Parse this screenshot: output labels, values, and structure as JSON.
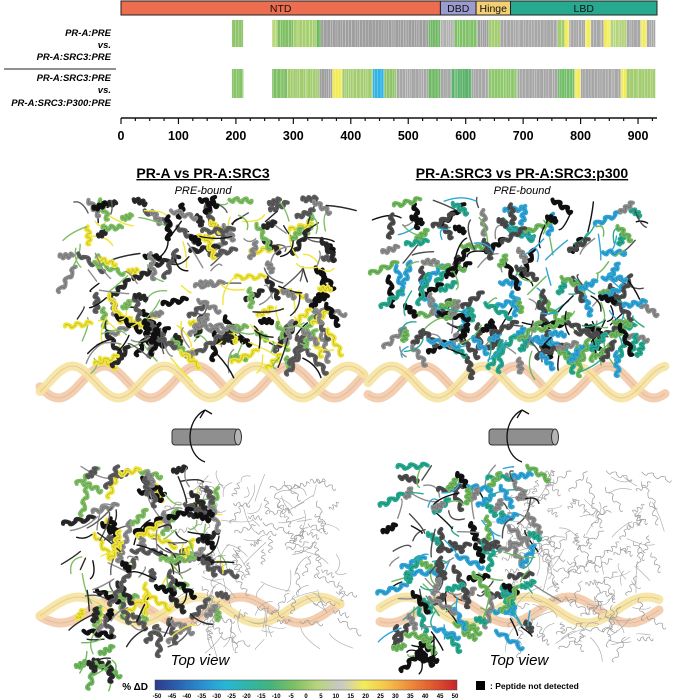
{
  "domains": [
    {
      "label": "NTD",
      "start": 1,
      "end": 556,
      "color": "#ec6d4f"
    },
    {
      "label": "DBD",
      "start": 556,
      "end": 618,
      "color": "#9c9bd0"
    },
    {
      "label": "Hinge",
      "start": 618,
      "end": 678,
      "color": "#f5cf73"
    },
    {
      "label": "LBD",
      "start": 678,
      "end": 933,
      "color": "#27a98f"
    }
  ],
  "axis": {
    "min": 0,
    "max": 933,
    "ticks": [
      0,
      100,
      200,
      300,
      400,
      500,
      600,
      700,
      800,
      900
    ]
  },
  "comparisons": [
    {
      "id": "c1",
      "label_lines": [
        "PR-A:PRE",
        "vs.",
        "PR-A:SRC3:PRE"
      ],
      "segments": [
        {
          "start": 193,
          "end": 213,
          "color": "#8fc46a"
        },
        {
          "start": 263,
          "end": 272,
          "color": "#bcd87a"
        },
        {
          "start": 272,
          "end": 300,
          "color": "#7fbf63"
        },
        {
          "start": 300,
          "end": 340,
          "color": "#a7cf70"
        },
        {
          "start": 340,
          "end": 348,
          "color": "#6cb85d"
        },
        {
          "start": 348,
          "end": 535,
          "color": "#9f9f9f"
        },
        {
          "start": 535,
          "end": 556,
          "color": "#6fb864"
        },
        {
          "start": 556,
          "end": 580,
          "color": "#b0b0b0"
        },
        {
          "start": 580,
          "end": 620,
          "color": "#7fc166"
        },
        {
          "start": 620,
          "end": 640,
          "color": "#9f9f9f"
        },
        {
          "start": 640,
          "end": 660,
          "color": "#a4cd6f"
        },
        {
          "start": 660,
          "end": 760,
          "color": "#a7a7a7"
        },
        {
          "start": 760,
          "end": 772,
          "color": "#a4cd6f"
        },
        {
          "start": 772,
          "end": 780,
          "color": "#f3ec5a"
        },
        {
          "start": 780,
          "end": 808,
          "color": "#a7a7a7"
        },
        {
          "start": 808,
          "end": 818,
          "color": "#f3ec5a"
        },
        {
          "start": 818,
          "end": 840,
          "color": "#a7a7a7"
        },
        {
          "start": 840,
          "end": 852,
          "color": "#f3ec5a"
        },
        {
          "start": 852,
          "end": 880,
          "color": "#b5d57d"
        },
        {
          "start": 880,
          "end": 905,
          "color": "#a7a7a7"
        },
        {
          "start": 905,
          "end": 915,
          "color": "#f3ec5a"
        },
        {
          "start": 915,
          "end": 930,
          "color": "#a7a7a7"
        }
      ]
    },
    {
      "id": "c2",
      "label_lines": [
        "PR-A:SRC3:PRE",
        "vs.",
        "PR-A:SRC3:P300:PRE"
      ],
      "segments": [
        {
          "start": 193,
          "end": 213,
          "color": "#86c466"
        },
        {
          "start": 263,
          "end": 290,
          "color": "#7fbf63"
        },
        {
          "start": 290,
          "end": 345,
          "color": "#a2cc6e"
        },
        {
          "start": 345,
          "end": 368,
          "color": "#9f9f9f"
        },
        {
          "start": 368,
          "end": 385,
          "color": "#f3ec5a"
        },
        {
          "start": 385,
          "end": 438,
          "color": "#a3cd70"
        },
        {
          "start": 438,
          "end": 458,
          "color": "#33b3e6"
        },
        {
          "start": 458,
          "end": 480,
          "color": "#8fc46a"
        },
        {
          "start": 480,
          "end": 535,
          "color": "#a7a7a7"
        },
        {
          "start": 535,
          "end": 556,
          "color": "#6fb864"
        },
        {
          "start": 556,
          "end": 575,
          "color": "#a7a7a7"
        },
        {
          "start": 575,
          "end": 610,
          "color": "#5bb26a"
        },
        {
          "start": 610,
          "end": 640,
          "color": "#a7a7a7"
        },
        {
          "start": 640,
          "end": 690,
          "color": "#8ec76c"
        },
        {
          "start": 690,
          "end": 760,
          "color": "#a7a7a7"
        },
        {
          "start": 760,
          "end": 790,
          "color": "#73be6a"
        },
        {
          "start": 790,
          "end": 800,
          "color": "#f3ec5a"
        },
        {
          "start": 800,
          "end": 870,
          "color": "#a7a7a7"
        },
        {
          "start": 870,
          "end": 880,
          "color": "#f3ec5a"
        },
        {
          "start": 880,
          "end": 930,
          "color": "#a3cd70"
        }
      ]
    }
  ],
  "panels": [
    {
      "id": "left",
      "title": "PR-A vs PR-A:SRC3",
      "subtitle": "PRE-bound",
      "view_label": "Top view",
      "colors": [
        "#5c5c5c",
        "#2a2a2a",
        "#7fbf63",
        "#f0e53a",
        "#111111",
        "#8c8c8c"
      ]
    },
    {
      "id": "right",
      "title": "PR-A:SRC3 vs PR-A:SRC3:p300",
      "subtitle": "PRE-bound",
      "view_label": "Top view",
      "colors": [
        "#6fb85d",
        "#4c4c4c",
        "#111111",
        "#26a98f",
        "#2fa5d8",
        "#8c8c8c"
      ]
    }
  ],
  "dna_colors": [
    "#f2c9a7",
    "#f6e3a0"
  ],
  "scale": {
    "label": "% ΔD",
    "ticks": [
      "-50",
      "-45",
      "-40",
      "-35",
      "-30",
      "-25",
      "-20",
      "-15",
      "-10",
      "-5",
      "0",
      "5",
      "10",
      "15",
      "20",
      "25",
      "30",
      "35",
      "40",
      "45",
      "50"
    ],
    "stops": [
      "#2c3c8c",
      "#2a62b0",
      "#2a8ecf",
      "#28b6d8",
      "#2fb6a6",
      "#46b37a",
      "#7fc065",
      "#b8d57a",
      "#c8c8c8",
      "#f3ec5a",
      "#f4c24a",
      "#ee8a3a",
      "#e05630",
      "#c8252a"
    ],
    "legend_text": ": Peptide not detected",
    "legend_color": "#000000"
  }
}
